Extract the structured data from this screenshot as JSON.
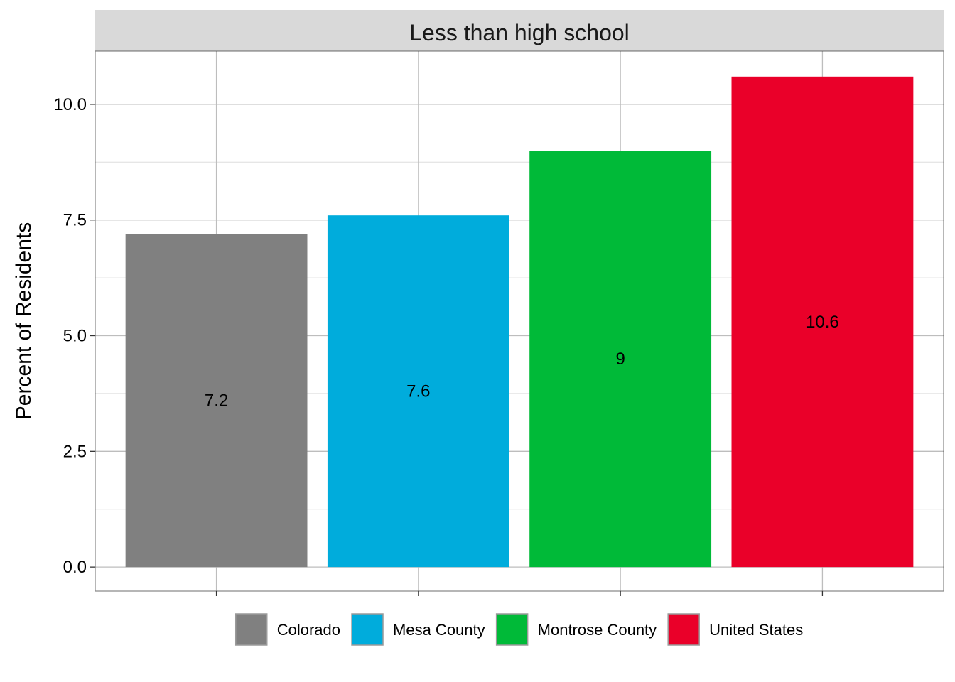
{
  "chart_data": {
    "type": "bar",
    "facet_title": "Less than high school",
    "categories": [
      "Colorado",
      "Mesa County",
      "Montrose County",
      "United States"
    ],
    "values": [
      7.2,
      7.6,
      9,
      10.6
    ],
    "value_labels": [
      "7.2",
      "7.6",
      "9",
      "10.6"
    ],
    "colors": [
      "#808080",
      "#00ACDC",
      "#00BA38",
      "#EA0029"
    ],
    "xlabel": "",
    "ylabel": "Percent of Residents",
    "ylim": [
      -0.52,
      11.15
    ],
    "yticks": [
      0,
      2.5,
      5,
      7.5,
      10
    ],
    "ytick_labels": [
      "0.0",
      "2.5",
      "5.0",
      "7.5",
      "10.0"
    ],
    "grid": true,
    "legend": {
      "position": "bottom",
      "entries": [
        "Colorado",
        "Mesa County",
        "Montrose County",
        "United States"
      ]
    }
  }
}
